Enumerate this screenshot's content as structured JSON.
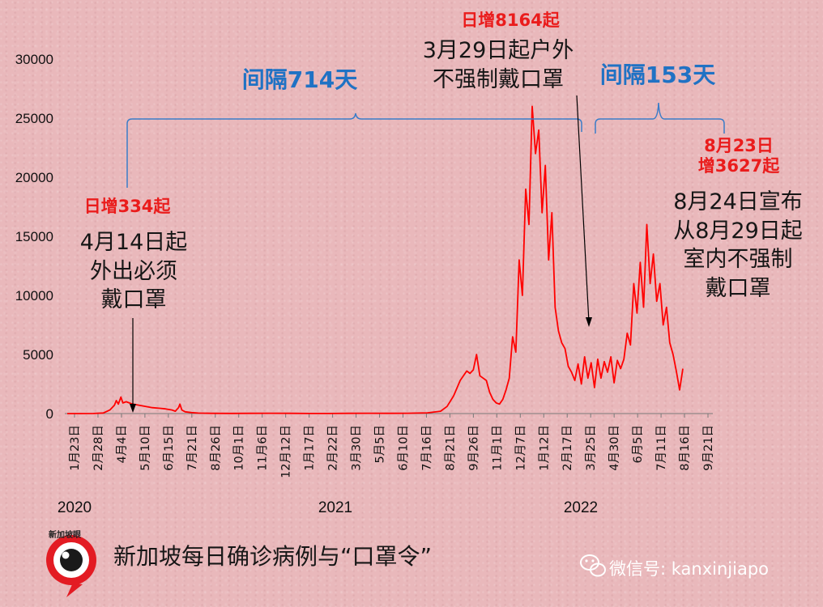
{
  "chart_data": {
    "type": "line",
    "title": "新加坡每日确诊病例与“口罩令”",
    "xlabel": "",
    "ylabel": "",
    "ylim": [
      0,
      30000
    ],
    "yticks": [
      0,
      5000,
      10000,
      15000,
      20000,
      25000,
      30000
    ],
    "ytick_labels": [
      "0",
      "5000",
      "10000",
      "15000",
      "20000",
      "25000",
      "30000"
    ],
    "xtick_labels": [
      "1月23日",
      "2月28日",
      "4月4日",
      "5月10日",
      "6月15日",
      "7月21日",
      "8月26日",
      "10月1日",
      "11月6日",
      "12月12日",
      "1月17日",
      "2月22日",
      "3月30日",
      "5月5日",
      "6月10日",
      "7月16日",
      "8月21日",
      "9月26日",
      "11月1日",
      "12月7日",
      "1月12日",
      "2月17日",
      "3月25日",
      "4月30日",
      "6月5日",
      "7月11日",
      "8月16日",
      "9月21日"
    ],
    "year_labels": [
      "2020",
      "2021",
      "2022"
    ],
    "grid": false,
    "series": [
      {
        "color": "#ff0000",
        "x": [
          0,
          20,
          40,
          55,
          65,
          72,
          75,
          78,
          82,
          85,
          90,
          95,
          100,
          110,
          120,
          130,
          140,
          150,
          160,
          165,
          170,
          172,
          175,
          180,
          190,
          200,
          220,
          250,
          280,
          310,
          340,
          370,
          400,
          430,
          460,
          490,
          520,
          550,
          570,
          580,
          590,
          600,
          610,
          615,
          620,
          625,
          630,
          635,
          640,
          645,
          650,
          655,
          660,
          665,
          670,
          675,
          680,
          685,
          690,
          695,
          700,
          705,
          710,
          715,
          720,
          725,
          730,
          735,
          740,
          745,
          750,
          755,
          760,
          765,
          770,
          775,
          780,
          785,
          790,
          795,
          800,
          805,
          810,
          815,
          820,
          825,
          830,
          835,
          840,
          845,
          850,
          855,
          860,
          865,
          870,
          875,
          880,
          885,
          890,
          895,
          900,
          905,
          910,
          915,
          920,
          925,
          930,
          935,
          940
        ],
        "y": [
          0,
          0,
          5,
          50,
          300,
          700,
          1100,
          800,
          1400,
          900,
          1000,
          900,
          800,
          700,
          600,
          500,
          450,
          400,
          300,
          200,
          500,
          800,
          300,
          150,
          80,
          40,
          20,
          15,
          20,
          30,
          20,
          10,
          10,
          20,
          25,
          20,
          30,
          60,
          200,
          600,
          1500,
          2800,
          3600,
          3400,
          3700,
          5000,
          3200,
          3000,
          2800,
          1800,
          1200,
          900,
          800,
          1200,
          2000,
          3000,
          6500,
          5200,
          13000,
          10000,
          19000,
          16000,
          26000,
          22000,
          24000,
          17000,
          21000,
          13000,
          17000,
          9000,
          7000,
          6000,
          5500,
          4000,
          3500,
          2800,
          4200,
          2500,
          4800,
          3000,
          4300,
          2200,
          4600,
          3000,
          4400,
          3500,
          4800,
          2600,
          4500,
          3800,
          4600,
          6800,
          5800,
          11000,
          8500,
          12800,
          9000,
          16000,
          11000,
          13500,
          9500,
          11000,
          7500,
          9000,
          6000,
          5000,
          3600,
          2000,
          3800
        ]
      }
    ],
    "annotations": {
      "a1_headline": "日增334起",
      "a1_lines": [
        "4月14日起",
        "外出必须",
        "戴口罩"
      ],
      "a2_headline": "日增8164起",
      "a2_lines": [
        "3月29日起户外",
        "不强制戴口罩"
      ],
      "a3_headline_lines": [
        "8月23日",
        "增3627起"
      ],
      "a3_lines": [
        "8月24日宣布",
        "从8月29日起",
        "室内不强制",
        "戴口罩"
      ],
      "gap1": "间隔714天",
      "gap2": "间隔153天"
    }
  },
  "footer": {
    "title": "新加坡每日确诊病例与“口罩令”",
    "logo_text": "新加坡眼",
    "wechat": "微信号: kanxinjiapo"
  },
  "colors": {
    "line": "#ff0000",
    "annotation_red": "#ea1c1c",
    "annotation_blue": "#2072c4",
    "bracket": "#3a7cc8",
    "background": "#e9b8bb"
  }
}
